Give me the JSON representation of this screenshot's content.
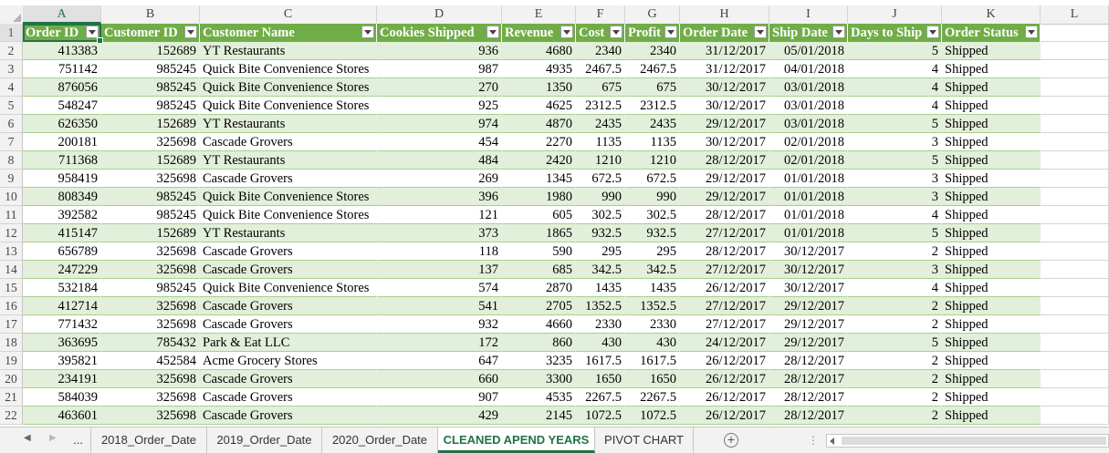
{
  "columns": [
    "A",
    "B",
    "C",
    "D",
    "E",
    "F",
    "G",
    "H",
    "I",
    "J",
    "K",
    "L"
  ],
  "headers": [
    "Order ID",
    "Customer ID",
    "Customer Name",
    "Cookies Shipped",
    "Revenue",
    "Cost",
    "Profit",
    "Order Date",
    "Ship Date",
    "Days to Ship",
    "Order Status"
  ],
  "rows": [
    [
      "413383",
      "152689",
      "YT Restaurants",
      "936",
      "4680",
      "2340",
      "2340",
      "31/12/2017",
      "05/01/2018",
      "5",
      "Shipped"
    ],
    [
      "751142",
      "985245",
      "Quick Bite Convenience Stores",
      "987",
      "4935",
      "2467.5",
      "2467.5",
      "31/12/2017",
      "04/01/2018",
      "4",
      "Shipped"
    ],
    [
      "876056",
      "985245",
      "Quick Bite Convenience Stores",
      "270",
      "1350",
      "675",
      "675",
      "30/12/2017",
      "03/01/2018",
      "4",
      "Shipped"
    ],
    [
      "548247",
      "985245",
      "Quick Bite Convenience Stores",
      "925",
      "4625",
      "2312.5",
      "2312.5",
      "30/12/2017",
      "03/01/2018",
      "4",
      "Shipped"
    ],
    [
      "626350",
      "152689",
      "YT Restaurants",
      "974",
      "4870",
      "2435",
      "2435",
      "29/12/2017",
      "03/01/2018",
      "5",
      "Shipped"
    ],
    [
      "200181",
      "325698",
      "Cascade Grovers",
      "454",
      "2270",
      "1135",
      "1135",
      "30/12/2017",
      "02/01/2018",
      "3",
      "Shipped"
    ],
    [
      "711368",
      "152689",
      "YT Restaurants",
      "484",
      "2420",
      "1210",
      "1210",
      "28/12/2017",
      "02/01/2018",
      "5",
      "Shipped"
    ],
    [
      "958419",
      "325698",
      "Cascade Grovers",
      "269",
      "1345",
      "672.5",
      "672.5",
      "29/12/2017",
      "01/01/2018",
      "3",
      "Shipped"
    ],
    [
      "808349",
      "985245",
      "Quick Bite Convenience Stores",
      "396",
      "1980",
      "990",
      "990",
      "29/12/2017",
      "01/01/2018",
      "3",
      "Shipped"
    ],
    [
      "392582",
      "985245",
      "Quick Bite Convenience Stores",
      "121",
      "605",
      "302.5",
      "302.5",
      "28/12/2017",
      "01/01/2018",
      "4",
      "Shipped"
    ],
    [
      "415147",
      "152689",
      "YT Restaurants",
      "373",
      "1865",
      "932.5",
      "932.5",
      "27/12/2017",
      "01/01/2018",
      "5",
      "Shipped"
    ],
    [
      "656789",
      "325698",
      "Cascade Grovers",
      "118",
      "590",
      "295",
      "295",
      "28/12/2017",
      "30/12/2017",
      "2",
      "Shipped"
    ],
    [
      "247229",
      "325698",
      "Cascade Grovers",
      "137",
      "685",
      "342.5",
      "342.5",
      "27/12/2017",
      "30/12/2017",
      "3",
      "Shipped"
    ],
    [
      "532184",
      "985245",
      "Quick Bite Convenience Stores",
      "574",
      "2870",
      "1435",
      "1435",
      "26/12/2017",
      "30/12/2017",
      "4",
      "Shipped"
    ],
    [
      "412714",
      "325698",
      "Cascade Grovers",
      "541",
      "2705",
      "1352.5",
      "1352.5",
      "27/12/2017",
      "29/12/2017",
      "2",
      "Shipped"
    ],
    [
      "771432",
      "325698",
      "Cascade Grovers",
      "932",
      "4660",
      "2330",
      "2330",
      "27/12/2017",
      "29/12/2017",
      "2",
      "Shipped"
    ],
    [
      "363695",
      "785432",
      "Park & Eat LLC",
      "172",
      "860",
      "430",
      "430",
      "24/12/2017",
      "29/12/2017",
      "5",
      "Shipped"
    ],
    [
      "395821",
      "452584",
      "Acme Grocery Stores",
      "647",
      "3235",
      "1617.5",
      "1617.5",
      "26/12/2017",
      "28/12/2017",
      "2",
      "Shipped"
    ],
    [
      "234191",
      "325698",
      "Cascade Grovers",
      "660",
      "3300",
      "1650",
      "1650",
      "26/12/2017",
      "28/12/2017",
      "2",
      "Shipped"
    ],
    [
      "584039",
      "325698",
      "Cascade Grovers",
      "907",
      "4535",
      "2267.5",
      "2267.5",
      "26/12/2017",
      "28/12/2017",
      "2",
      "Shipped"
    ],
    [
      "463601",
      "325698",
      "Cascade Grovers",
      "429",
      "2145",
      "1072.5",
      "1072.5",
      "26/12/2017",
      "28/12/2017",
      "2",
      "Shipped"
    ]
  ],
  "sheet_tabs": [
    "...",
    "2018_Order_Date",
    "2019_Order_Date",
    "2020_Order_Date",
    "CLEANED APEND YEARS",
    "PIVOT CHART"
  ],
  "active_tab": "CLEANED APEND YEARS",
  "add_sheet_symbol": "+",
  "tab_options_symbol": "⋮",
  "colors": {
    "table_header": "#70ad47",
    "band": "#e2efda",
    "accent": "#217346"
  }
}
